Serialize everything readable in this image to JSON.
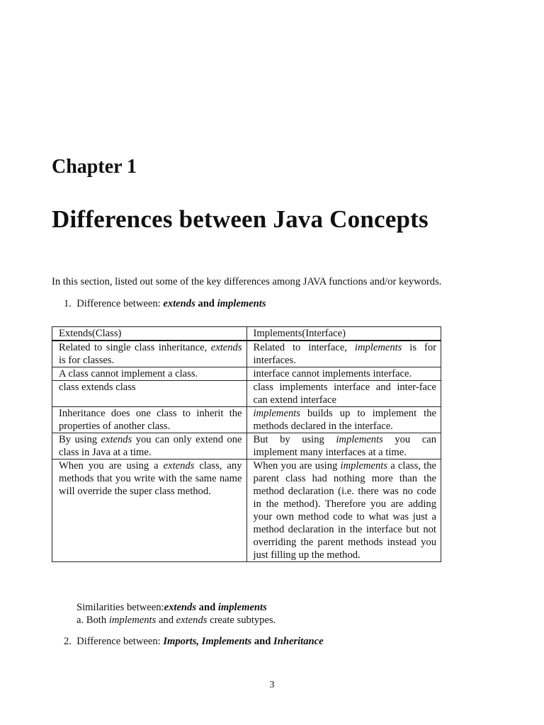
{
  "chapter_label": "Chapter 1",
  "title": "Differences between Java Concepts",
  "intro": "In this section, listed out some of the key differences among JAVA functions and/or keywords.",
  "item1": {
    "number": "1.",
    "text": "Difference between: ",
    "a": "extends",
    "and": " and ",
    "b": "implements"
  },
  "table": {
    "headers": [
      "Extends(Class)",
      "Implements(Interface)"
    ],
    "rows": [
      [
        [
          "Related to single class inheritance, ",
          {
            "em": "extends"
          },
          " is for classes."
        ],
        [
          "Related to interface, ",
          {
            "em": "implements"
          },
          " is for interfaces."
        ]
      ],
      [
        [
          "A class cannot implement a class."
        ],
        [
          "interface cannot implements interface."
        ]
      ],
      [
        [
          "class extends class"
        ],
        [
          "class implements interface and inter-face can extend interface"
        ]
      ],
      [
        [
          "Inheritance does one class to inherit the properties of another class."
        ],
        [
          {
            "em": "implements"
          },
          " builds up to implement the methods declared in the interface."
        ]
      ],
      [
        [
          "By using ",
          {
            "em": "extends"
          },
          " you can only extend one class in Java at a time."
        ],
        [
          "But by using ",
          {
            "em": "implements"
          },
          " you can implement many interfaces at a time."
        ]
      ],
      [
        [
          "When you are using a ",
          {
            "em": "extends"
          },
          " class, any methods that you write with the same name will override the super class method."
        ],
        [
          "When you are using ",
          {
            "em": "implements"
          },
          " a class, the parent class had nothing more than the method declaration (i.e. there was no code in the method). Therefore you are adding your own method code to what was just a method declaration in the interface but not overriding the parent methods instead you just filling up the method."
        ]
      ]
    ]
  },
  "similarities": {
    "heading": "Similarities between:",
    "a": "extends",
    "and": " and ",
    "b": "implements",
    "item": {
      "prefix": "a. Both ",
      "x": "implements",
      "mid": " and ",
      "y": "extends",
      "suffix": " create subtypes."
    }
  },
  "item2": {
    "number": "2.",
    "text": "Difference between: ",
    "a": "Imports, Implements",
    "and": " and ",
    "b": "Inheritance"
  },
  "page_number": "3"
}
